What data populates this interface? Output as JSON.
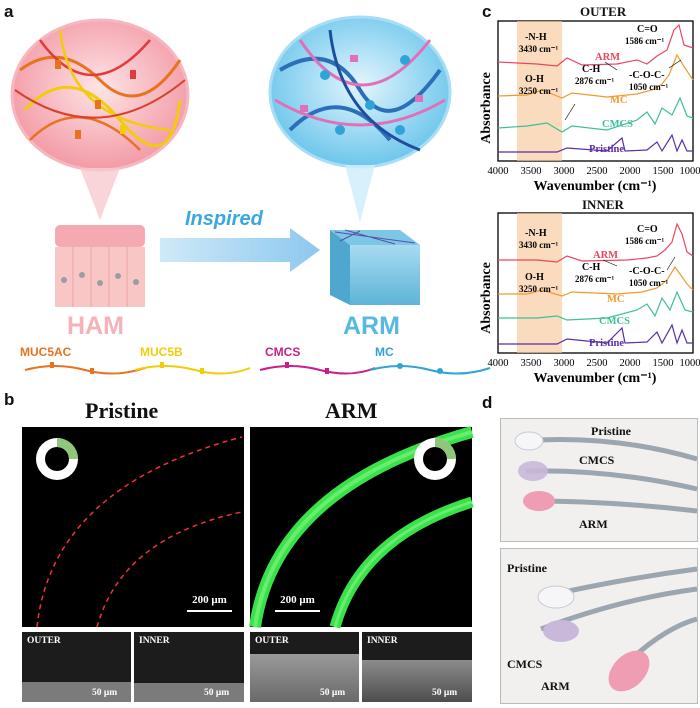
{
  "panel_labels": {
    "a": "a",
    "b": "b",
    "c": "c",
    "d": "d"
  },
  "panel_a": {
    "arrow_label": "Inspired",
    "left_title": "HAM",
    "right_title": "ARM",
    "legend": [
      "MUC5AC",
      "MUC5B",
      "CMCS",
      "MC"
    ],
    "colors": {
      "ham": "#f4a6ad",
      "arm": "#58b8e0",
      "muc5ac": "#e8731e",
      "muc5b": "#f2cc0c",
      "cmcs": "#c81f8a",
      "mc": "#2fa4d8"
    }
  },
  "panel_b": {
    "titles": [
      "Pristine",
      "ARM"
    ],
    "scalebar_main": "200 μm",
    "sem_labels": [
      "OUTER",
      "INNER",
      "OUTER",
      "INNER"
    ],
    "scalebar_sem": "50 μm"
  },
  "panel_c": {
    "charts": [
      {
        "title": "OUTER",
        "ylabel": "Absorbance",
        "xlabel": "Wavenumber (cm⁻¹)",
        "xticks": [
          "4000",
          "3500",
          "3000",
          "2500",
          "2000",
          "1500",
          "1000"
        ],
        "annotations": [
          "-N-H",
          "3430 cm⁻¹",
          "O-H",
          "3250 cm⁻¹",
          "C-H",
          "2876 cm⁻¹",
          "C=O",
          "1586 cm⁻¹",
          "-C-O-C-",
          "1050 cm⁻¹"
        ],
        "series": [
          "ARM",
          "MC",
          "CMCS",
          "Pristine"
        ]
      },
      {
        "title": "INNER",
        "ylabel": "Absorbance",
        "xlabel": "Wavenumber (cm⁻¹)",
        "xticks": [
          "4000",
          "3500",
          "3000",
          "2500",
          "2000",
          "1500",
          "1000"
        ],
        "annotations": [
          "-N-H",
          "3430 cm⁻¹",
          "O-H",
          "3250 cm⁻¹",
          "C-H",
          "2876 cm⁻¹",
          "C=O",
          "1586 cm⁻¹",
          "-C-O-C-",
          "1050 cm⁻¹"
        ],
        "series": [
          "ARM",
          "MC",
          "CMCS",
          "Pristine"
        ]
      }
    ],
    "series_colors": {
      "ARM": "#e8475f",
      "MC": "#f09a2e",
      "CMCS": "#3dbf9a",
      "Pristine": "#5a2ea8"
    }
  },
  "panel_d": {
    "top_labels": [
      "Pristine",
      "CMCS",
      "ARM"
    ],
    "bottom_labels": [
      "Pristine",
      "CMCS",
      "ARM"
    ]
  }
}
